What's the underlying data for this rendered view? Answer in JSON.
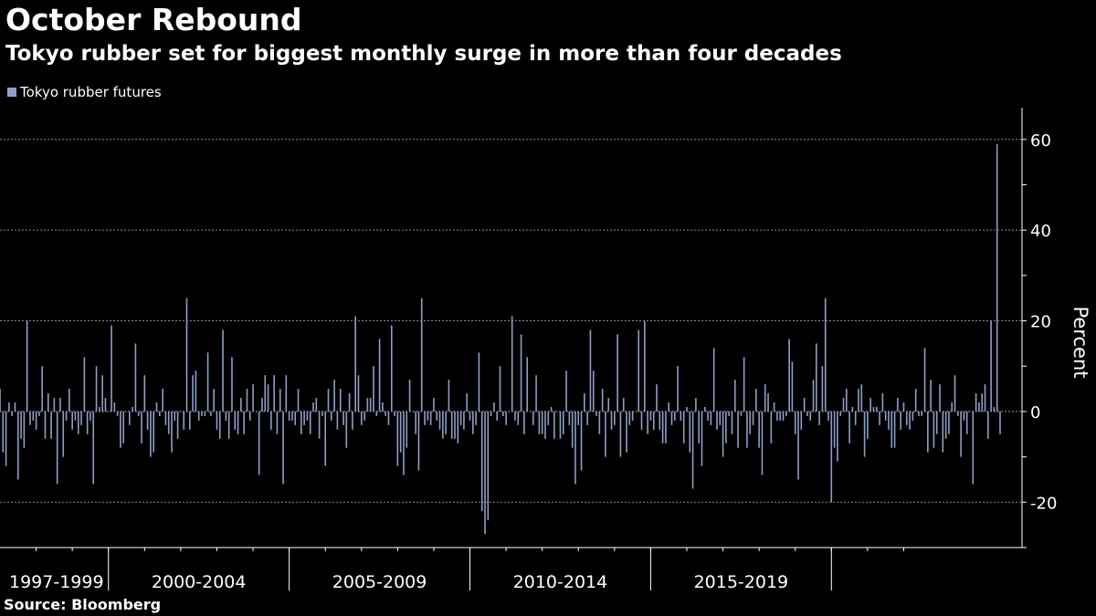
{
  "title": "October Rebound",
  "subtitle": "Tokyo rubber set for biggest monthly surge in more than four decades",
  "source": "Source: Bloomberg",
  "chart_data": {
    "type": "bar",
    "series": [
      {
        "name": "Tokyo rubber futures",
        "color": "#8e9ec6",
        "start": "1997-01",
        "values": [
          5,
          -9,
          -12,
          2,
          -1,
          2,
          -15,
          -6,
          -8,
          20,
          -3,
          -2,
          -4,
          -1,
          10,
          -6,
          4,
          -6,
          3,
          -16,
          3,
          -10,
          -2,
          5,
          -4,
          -2,
          -5,
          -3,
          12,
          -5,
          -2,
          -16,
          10,
          1,
          8,
          3,
          0,
          19,
          2,
          -1,
          -8,
          -7,
          0,
          -3,
          1,
          15,
          -1,
          -7,
          8,
          -4,
          -10,
          -9,
          2,
          -1,
          5,
          -3,
          -5,
          -9,
          -2,
          -6,
          0,
          -4,
          25,
          -4,
          8,
          9,
          -2,
          -1,
          -1,
          13,
          -1,
          5,
          -4,
          -6,
          18,
          -2,
          -6,
          12,
          -4,
          -5,
          3,
          -5,
          5,
          -2,
          6,
          0,
          -14,
          3,
          8,
          6,
          -4,
          8,
          -5,
          5,
          -16,
          8,
          -2,
          -2,
          -3,
          5,
          -5,
          -3,
          -2,
          -5,
          2,
          3,
          -6,
          -1,
          -12,
          5,
          -2,
          7,
          -4,
          5,
          -3,
          -8,
          4,
          -4,
          21,
          8,
          -3,
          -2,
          3,
          3,
          10,
          -1,
          16,
          2,
          -1,
          -3,
          19,
          -1,
          -12,
          -9,
          -14,
          -8,
          7,
          0,
          -5,
          -13,
          25,
          -3,
          -2,
          -3,
          3,
          -2,
          -4,
          -6,
          -5,
          7,
          -6,
          -6,
          -7,
          -3,
          -4,
          4,
          -2,
          -5,
          -3,
          13,
          -22,
          -27,
          -24,
          -1,
          2,
          -2,
          10,
          -1,
          -3,
          0,
          21,
          -2,
          -3,
          17,
          -5,
          12,
          0,
          -3,
          8,
          -5,
          -5,
          -6,
          -3,
          1,
          -6,
          0,
          -6,
          -5,
          9,
          -3,
          -8,
          -16,
          -3,
          -13,
          4,
          -3,
          18,
          9,
          -1,
          -5,
          5,
          -10,
          3,
          -4,
          -3,
          17,
          -10,
          3,
          -9,
          -3,
          -2,
          0,
          18,
          -4,
          20,
          -5,
          -2,
          -4,
          6,
          -4,
          -7,
          -7,
          2,
          -3,
          -2,
          10,
          -2,
          -7,
          1,
          -9,
          -17,
          3,
          -7,
          -12,
          1,
          -2,
          -3,
          14,
          -4,
          -3,
          -10,
          -7,
          -1,
          -5,
          7,
          -8,
          -1,
          12,
          -8,
          -5,
          -3,
          5,
          -8,
          -14,
          6,
          4,
          -7,
          2,
          -2,
          -2,
          -2,
          -1,
          16,
          11,
          -5,
          -15,
          -4,
          3,
          -1,
          -2,
          7,
          15,
          -3,
          10,
          25,
          -2,
          -20,
          -8,
          -11,
          -1,
          3,
          5,
          -7,
          1,
          -3,
          5,
          6,
          -10,
          -6,
          3,
          1,
          1,
          -3,
          4,
          -2,
          -4,
          -8,
          -8,
          3,
          -4,
          2,
          -3,
          -4,
          -2,
          5,
          -1,
          -1,
          14,
          -9,
          7,
          -8,
          -5,
          6,
          -9,
          -6,
          -5,
          2,
          8,
          -1,
          -10,
          -2,
          -5,
          0,
          -16,
          4,
          2,
          4,
          6,
          -6,
          20,
          1,
          59,
          -5
        ]
      }
    ],
    "ylabel": "Percent",
    "ylim": [
      -30,
      67
    ],
    "yticks": [
      -20,
      0,
      20,
      40,
      60
    ],
    "gridlines": [
      -20,
      20,
      40,
      60
    ],
    "x_periods": [
      "1997-1999",
      "2000-2004",
      "2005-2009",
      "2010-2014",
      "2015-2019"
    ],
    "grid": true,
    "legend": "top-left"
  }
}
